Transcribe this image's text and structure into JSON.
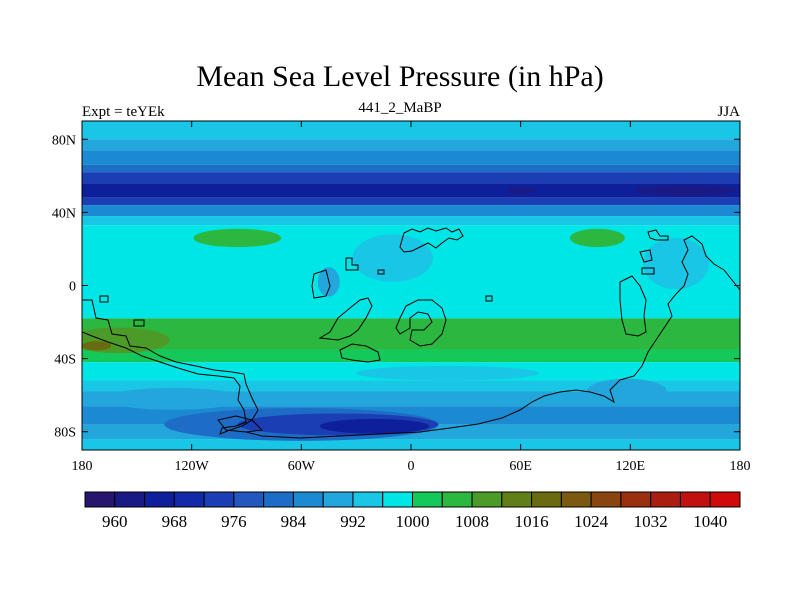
{
  "chart_data": {
    "type": "heatmap",
    "title": "Mean Sea Level Pressure (in hPa)",
    "left_string": "Expt = teYEk",
    "center_string": "441_2_MaBP",
    "right_string": "JJA",
    "x_ticks": [
      "180",
      "120W",
      "60W",
      "0",
      "60E",
      "120E",
      "180"
    ],
    "x_tick_values": [
      -180,
      -120,
      -60,
      0,
      60,
      120,
      180
    ],
    "y_ticks": [
      "80N",
      "40N",
      "0",
      "40S",
      "80S"
    ],
    "y_tick_values": [
      80,
      40,
      0,
      -40,
      -80
    ],
    "xlim": [
      -180,
      180
    ],
    "ylim": [
      -90,
      90
    ],
    "colorbar": {
      "levels": [
        956,
        960,
        964,
        968,
        972,
        976,
        980,
        984,
        988,
        992,
        996,
        1000,
        1004,
        1008,
        1012,
        1016,
        1020,
        1024,
        1028,
        1032,
        1036,
        1040,
        1044
      ],
      "colors": [
        "#28166e",
        "#1a1a86",
        "#0d1f9a",
        "#102aa8",
        "#1c3eb4",
        "#2456c0",
        "#1d6dc6",
        "#1b8ad2",
        "#22a6dc",
        "#19c6e6",
        "#00e6e6",
        "#14c85a",
        "#2cb840",
        "#4c9a28",
        "#607f18",
        "#6a6a10",
        "#7a5a10",
        "#8a4410",
        "#9a3010",
        "#aa1e10",
        "#c01010",
        "#d00a0a"
      ],
      "labels": [
        "960",
        "968",
        "976",
        "984",
        "992",
        "1000",
        "1008",
        "1016",
        "1024",
        "1032",
        "1040"
      ],
      "label_values": [
        960,
        968,
        976,
        984,
        992,
        1000,
        1008,
        1016,
        1024,
        1032,
        1040
      ]
    },
    "bands": [
      {
        "lat_top": 90,
        "lat_bot": 80,
        "value": 994
      },
      {
        "lat_top": 80,
        "lat_bot": 74,
        "value": 990
      },
      {
        "lat_top": 74,
        "lat_bot": 66,
        "value": 986
      },
      {
        "lat_top": 66,
        "lat_bot": 62,
        "value": 982
      },
      {
        "lat_top": 62,
        "lat_bot": 56,
        "value": 974
      },
      {
        "lat_top": 56,
        "lat_bot": 48,
        "value": 966
      },
      {
        "lat_top": 48,
        "lat_bot": 44,
        "value": 974
      },
      {
        "lat_top": 44,
        "lat_bot": 38,
        "value": 986
      },
      {
        "lat_top": 38,
        "lat_bot": 33,
        "value": 994
      },
      {
        "lat_top": 33,
        "lat_bot": -18,
        "value": 998
      },
      {
        "lat_top": -18,
        "lat_bot": -35,
        "value": 1006
      },
      {
        "lat_top": -35,
        "lat_bot": -42,
        "value": 1002
      },
      {
        "lat_top": -42,
        "lat_bot": -52,
        "value": 998
      },
      {
        "lat_top": -52,
        "lat_bot": -58,
        "value": 994
      },
      {
        "lat_top": -58,
        "lat_bot": -66,
        "value": 990
      },
      {
        "lat_top": -66,
        "lat_bot": -76,
        "value": 986
      },
      {
        "lat_top": -76,
        "lat_bot": -84,
        "value": 990
      },
      {
        "lat_top": -84,
        "lat_bot": -90,
        "value": 994
      }
    ],
    "features": [
      {
        "lon": -95,
        "lat": 26,
        "rlon": 24,
        "rlat": 5,
        "value": 1006
      },
      {
        "lon": 102,
        "lat": 26,
        "rlon": 15,
        "rlat": 5,
        "value": 1006
      },
      {
        "lon": -160,
        "lat": -30,
        "rlon": 28,
        "rlat": 7,
        "value": 1010
      },
      {
        "lon": -172,
        "lat": -33,
        "rlon": 8,
        "rlat": 2.5,
        "value": 1016
      },
      {
        "lon": -10,
        "lat": 15,
        "rlon": 22,
        "rlat": 13,
        "value": 994
      },
      {
        "lon": -45,
        "lat": 2,
        "rlon": 6,
        "rlat": 8,
        "value": 990
      },
      {
        "lon": 145,
        "lat": 12,
        "rlon": 18,
        "rlat": 14,
        "value": 994
      },
      {
        "lon": 118,
        "lat": -58,
        "rlon": 22,
        "rlat": 7,
        "value": 990
      },
      {
        "lon": -130,
        "lat": -62,
        "rlon": 38,
        "rlat": 6,
        "value": 990
      },
      {
        "lon": -60,
        "lat": -76,
        "rlon": 75,
        "rlat": 9,
        "value": 980
      },
      {
        "lon": -40,
        "lat": -76,
        "rlon": 55,
        "rlat": 6,
        "value": 972
      },
      {
        "lon": -20,
        "lat": -77,
        "rlon": 30,
        "rlat": 4,
        "value": 964
      },
      {
        "lon": 20,
        "lat": -48,
        "rlon": 50,
        "rlat": 4,
        "value": 994
      },
      {
        "lon": 60,
        "lat": 52,
        "rlon": 8,
        "rlat": 2,
        "value": 960
      },
      {
        "lon": 150,
        "lat": 52,
        "rlon": 28,
        "rlat": 3,
        "value": 960
      }
    ]
  }
}
